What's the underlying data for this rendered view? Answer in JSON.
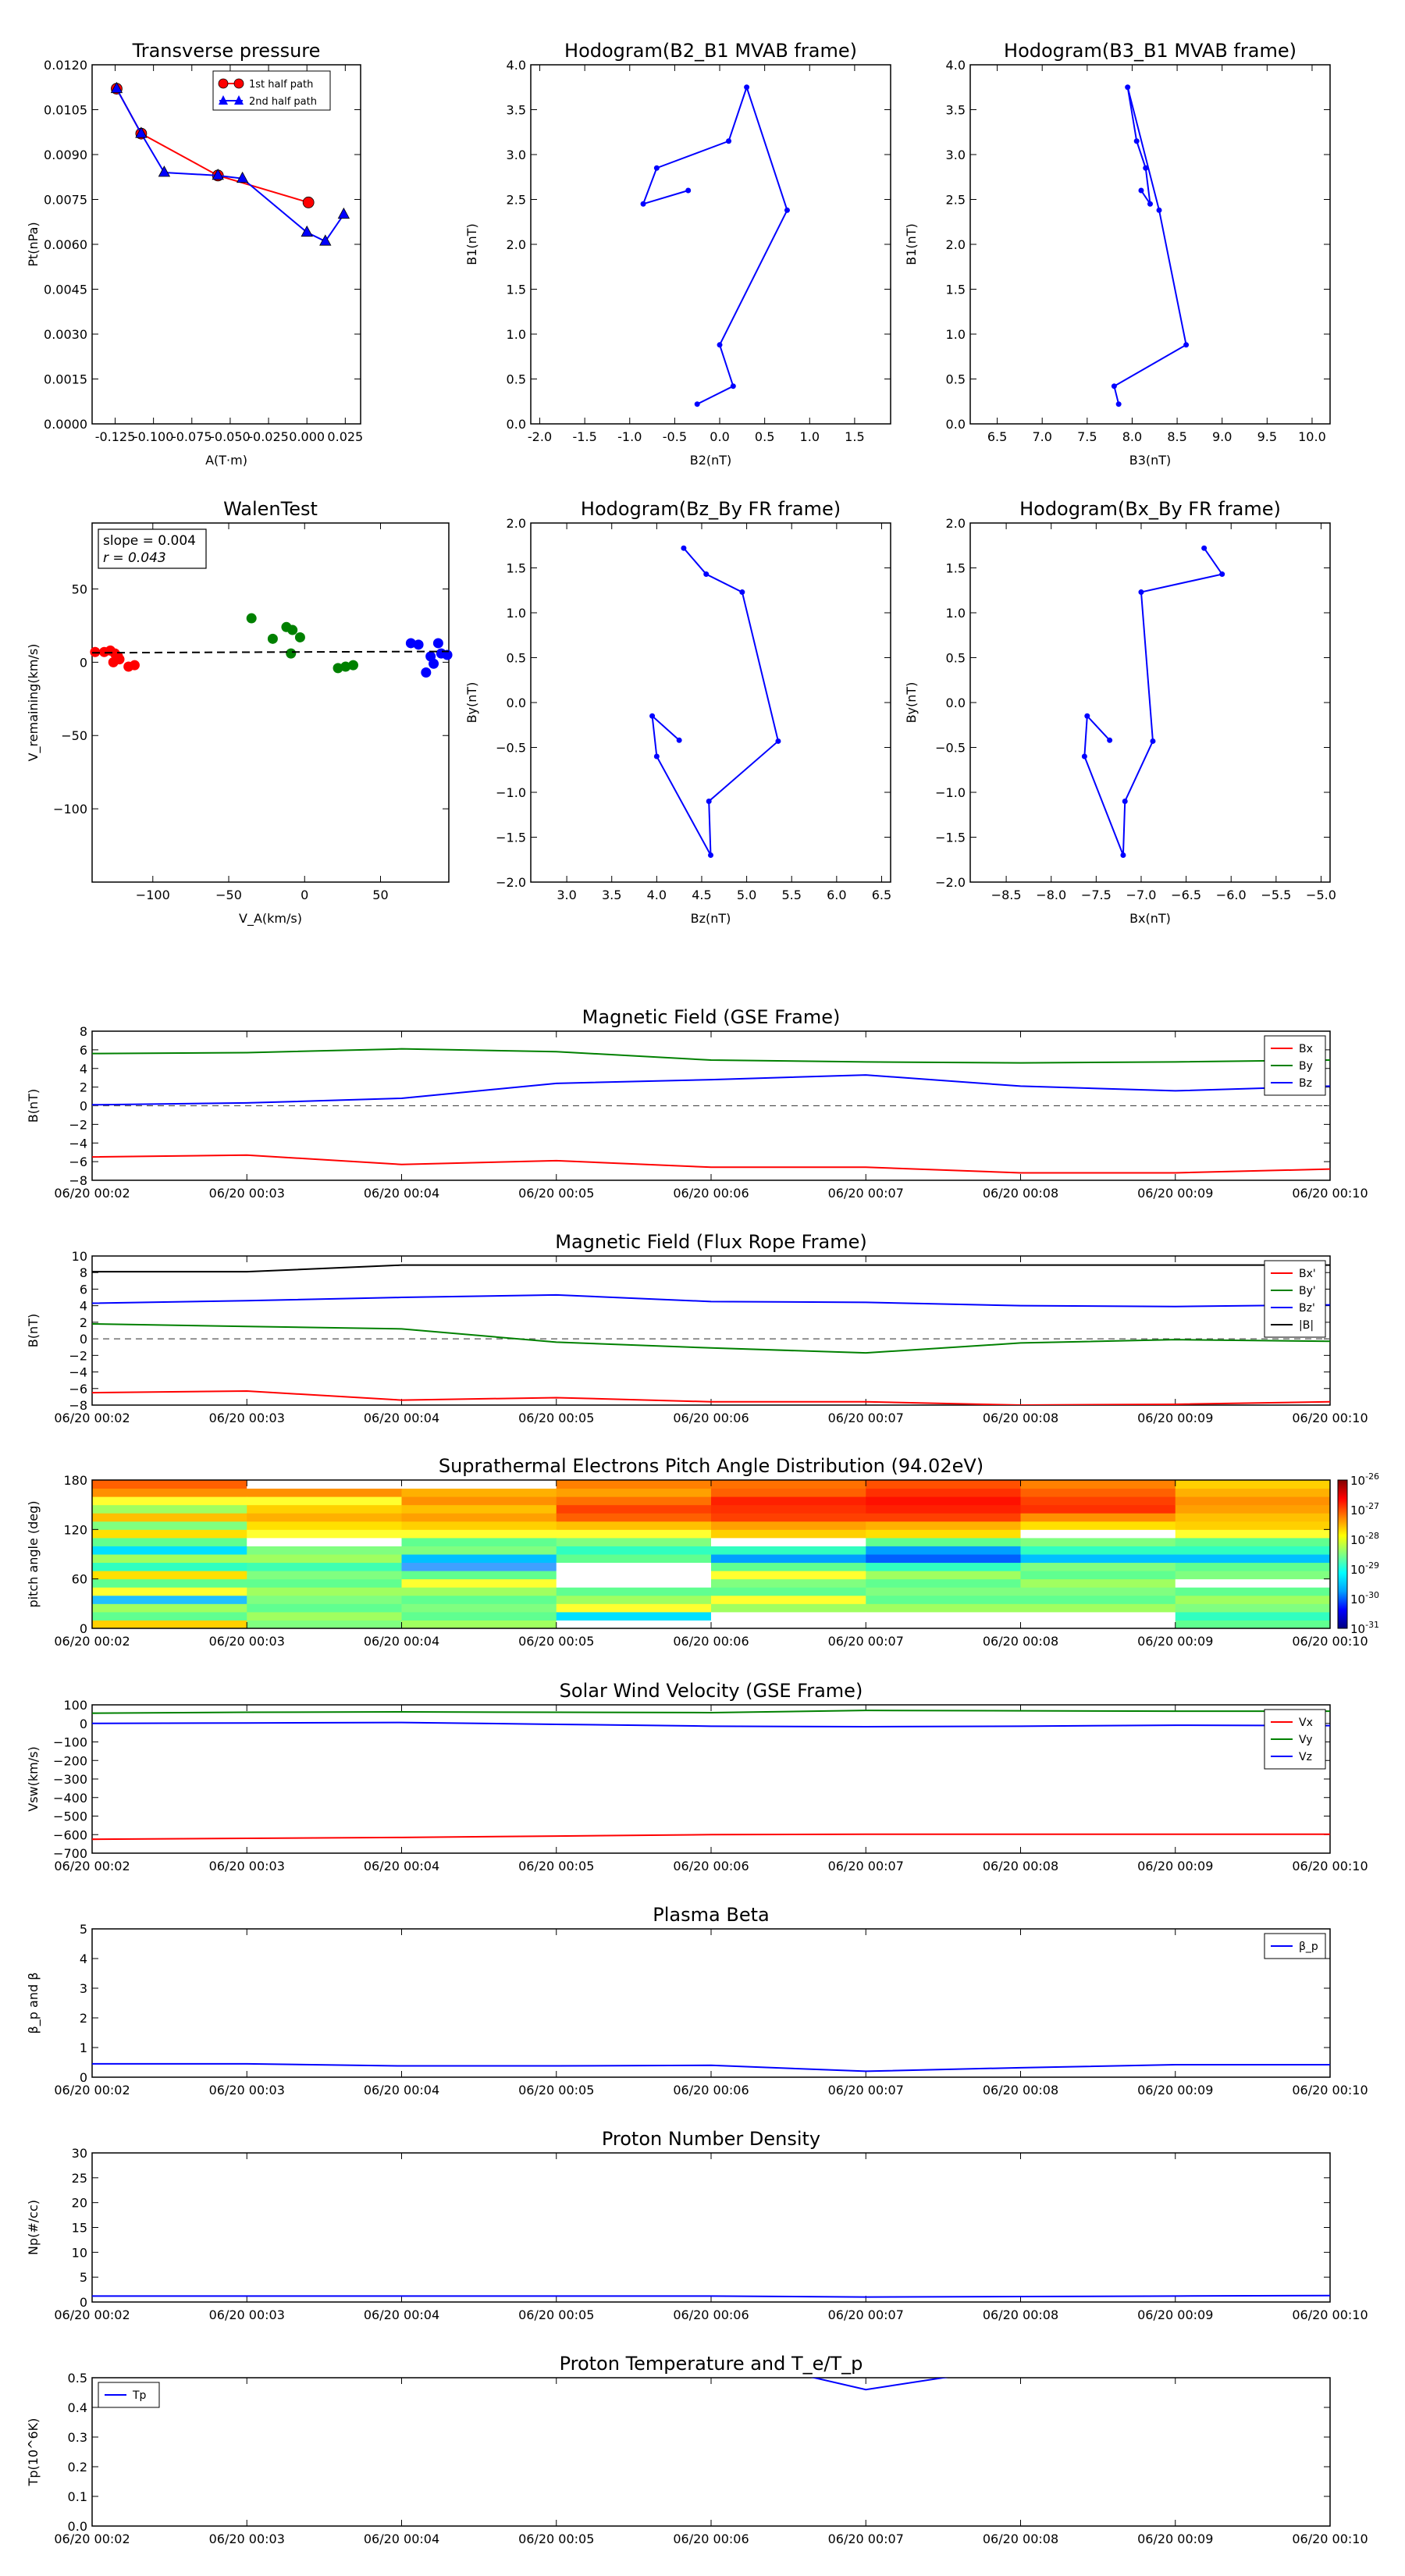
{
  "figure": {
    "type": "multi-panel scientific figure"
  },
  "colors": {
    "red": "#ff0000",
    "green": "#008000",
    "blue": "#0000ff",
    "black": "#000000",
    "grid_dash": "#555555"
  },
  "chart_data": [
    {
      "id": "transverse",
      "type": "line",
      "title": "Transverse pressure",
      "xlabel": "A(T·m)",
      "ylabel": "Pt(nPa)",
      "xlim": [
        -0.14,
        0.035
      ],
      "ylim": [
        0,
        0.012
      ],
      "xticks": [
        "-0.125",
        "-0.100",
        "-0.075",
        "-0.050",
        "-0.025",
        "0.000",
        "0.025"
      ],
      "xtickvals": [
        -0.125,
        -0.1,
        -0.075,
        -0.05,
        -0.025,
        0.0,
        0.025
      ],
      "yticks": [
        "0.0000",
        "0.0015",
        "0.0030",
        "0.0045",
        "0.0060",
        "0.0075",
        "0.0090",
        "0.0105",
        "0.0120"
      ],
      "ytickvals": [
        0,
        0.0015,
        0.003,
        0.0045,
        0.006,
        0.0075,
        0.009,
        0.0105,
        0.012
      ],
      "legend_position": "top-center",
      "series": [
        {
          "name": "1st half path",
          "color": "#ff0000",
          "marker": "circle",
          "x": [
            -0.124,
            -0.108,
            -0.058,
            0.001
          ],
          "y": [
            0.0112,
            0.0097,
            0.0083,
            0.0074
          ]
        },
        {
          "name": "2nd half path",
          "color": "#0000ff",
          "marker": "triangle",
          "x": [
            -0.124,
            -0.108,
            -0.093,
            -0.058,
            -0.042,
            0.0,
            0.012,
            0.024
          ],
          "y": [
            0.0112,
            0.0097,
            0.0084,
            0.0083,
            0.0082,
            0.0064,
            0.0061,
            0.007
          ]
        }
      ]
    },
    {
      "id": "hodo_b2b1",
      "type": "line",
      "title": "Hodogram(B2_B1 MVAB frame)",
      "xlabel": "B2(nT)",
      "ylabel": "B1(nT)",
      "xlim": [
        -2.1,
        1.9
      ],
      "ylim": [
        0,
        4
      ],
      "xticks": [
        "-2.0",
        "-1.5",
        "-1.0",
        "-0.5",
        "0.0",
        "0.5",
        "1.0",
        "1.5"
      ],
      "xtickvals": [
        -2,
        -1.5,
        -1,
        -0.5,
        0,
        0.5,
        1,
        1.5
      ],
      "yticks": [
        "0.0",
        "0.5",
        "1.0",
        "1.5",
        "2.0",
        "2.5",
        "3.0",
        "3.5",
        "4.0"
      ],
      "ytickvals": [
        0,
        0.5,
        1,
        1.5,
        2,
        2.5,
        3,
        3.5,
        4
      ],
      "series": [
        {
          "name": "",
          "color": "#0000ff",
          "marker": "dot",
          "x": [
            -0.35,
            -0.85,
            -0.7,
            0.1,
            0.3,
            0.75,
            0.0,
            0.15,
            -0.25
          ],
          "y": [
            2.6,
            2.45,
            2.85,
            3.15,
            3.75,
            2.38,
            0.88,
            0.42,
            0.22
          ]
        }
      ]
    },
    {
      "id": "hodo_b3b1",
      "type": "line",
      "title": "Hodogram(B3_B1 MVAB frame)",
      "xlabel": "B3(nT)",
      "ylabel": "B1(nT)",
      "xlim": [
        6.2,
        10.2
      ],
      "ylim": [
        0,
        4
      ],
      "xticks": [
        "6.5",
        "7.0",
        "7.5",
        "8.0",
        "8.5",
        "9.0",
        "9.5",
        "10.0"
      ],
      "xtickvals": [
        6.5,
        7,
        7.5,
        8,
        8.5,
        9,
        9.5,
        10
      ],
      "yticks": [
        "0.0",
        "0.5",
        "1.0",
        "1.5",
        "2.0",
        "2.5",
        "3.0",
        "3.5",
        "4.0"
      ],
      "ytickvals": [
        0,
        0.5,
        1,
        1.5,
        2,
        2.5,
        3,
        3.5,
        4
      ],
      "series": [
        {
          "name": "",
          "color": "#0000ff",
          "marker": "dot",
          "x": [
            8.1,
            8.2,
            8.15,
            8.05,
            7.95,
            8.3,
            8.6,
            7.8,
            7.85
          ],
          "y": [
            2.6,
            2.45,
            2.85,
            3.15,
            3.75,
            2.38,
            0.88,
            0.42,
            0.22
          ]
        }
      ]
    },
    {
      "id": "walen",
      "type": "scatter",
      "title": "WalenTest",
      "xlabel": "V_A(km/s)",
      "ylabel": "V_remaining(km/s)",
      "xlim": [
        -140,
        95
      ],
      "ylim": [
        -150,
        95
      ],
      "xticks": [
        "−100",
        "−50",
        "0",
        "50"
      ],
      "xtickvals": [
        -100,
        -50,
        0,
        50
      ],
      "yticks": [
        "−100",
        "−50",
        "0",
        "50"
      ],
      "ytickvals": [
        -100,
        -50,
        0,
        50
      ],
      "annotation": {
        "slope": "slope = 0.004",
        "r": "r = 0.043"
      },
      "fit_line": {
        "slope": 0.004,
        "intercept": 7
      },
      "series": [
        {
          "name": "",
          "color": "#ff0000",
          "x": [
            -138,
            -132,
            -128,
            -125,
            -123,
            -126,
            -122,
            -116,
            -112
          ],
          "y": [
            7,
            7,
            8,
            6,
            4,
            0,
            2,
            -3,
            -2
          ]
        },
        {
          "name": "",
          "color": "#008000",
          "x": [
            -35,
            -21,
            -12,
            -8,
            -3,
            -9,
            22,
            27,
            32
          ],
          "y": [
            30,
            16,
            24,
            22,
            17,
            6,
            -4,
            -3,
            -2
          ]
        },
        {
          "name": "",
          "color": "#0000ff",
          "x": [
            70,
            75,
            80,
            83,
            85,
            88,
            90,
            94
          ],
          "y": [
            13,
            12,
            -7,
            4,
            -1,
            13,
            6,
            5
          ]
        }
      ]
    },
    {
      "id": "hodo_bzby",
      "type": "line",
      "title": "Hodogram(Bz_By FR frame)",
      "xlabel": "Bz(nT)",
      "ylabel": "By(nT)",
      "xlim": [
        2.6,
        6.6
      ],
      "ylim": [
        -2,
        2
      ],
      "xticks": [
        "3.0",
        "3.5",
        "4.0",
        "4.5",
        "5.0",
        "5.5",
        "6.0",
        "6.5"
      ],
      "xtickvals": [
        3,
        3.5,
        4,
        4.5,
        5,
        5.5,
        6,
        6.5
      ],
      "yticks": [
        "−2.0",
        "−1.5",
        "−1.0",
        "−0.5",
        "0.0",
        "0.5",
        "1.0",
        "1.5",
        "2.0"
      ],
      "ytickvals": [
        -2,
        -1.5,
        -1,
        -0.5,
        0,
        0.5,
        1,
        1.5,
        2
      ],
      "series": [
        {
          "name": "",
          "color": "#0000ff",
          "marker": "dot",
          "x": [
            4.25,
            3.95,
            4.0,
            4.6,
            4.58,
            5.35,
            4.95,
            4.55,
            4.3
          ],
          "y": [
            -0.42,
            -0.15,
            -0.6,
            -1.7,
            -1.1,
            -0.43,
            1.23,
            1.43,
            1.72
          ]
        }
      ]
    },
    {
      "id": "hodo_bxby",
      "type": "line",
      "title": "Hodogram(Bx_By FR frame)",
      "xlabel": "Bx(nT)",
      "ylabel": "By(nT)",
      "xlim": [
        -8.9,
        -4.9
      ],
      "ylim": [
        -2,
        2
      ],
      "xticks": [
        "−8.5",
        "−8.0",
        "−7.5",
        "−7.0",
        "−6.5",
        "−6.0",
        "−5.5",
        "−5.0"
      ],
      "xtickvals": [
        -8.5,
        -8,
        -7.5,
        -7,
        -6.5,
        -6,
        -5.5,
        -5
      ],
      "yticks": [
        "−2.0",
        "−1.5",
        "−1.0",
        "−0.5",
        "0.0",
        "0.5",
        "1.0",
        "1.5",
        "2.0"
      ],
      "ytickvals": [
        -2,
        -1.5,
        -1,
        -0.5,
        0,
        0.5,
        1,
        1.5,
        2
      ],
      "series": [
        {
          "name": "",
          "color": "#0000ff",
          "marker": "dot",
          "x": [
            -7.35,
            -7.6,
            -7.63,
            -7.2,
            -7.18,
            -6.87,
            -7.0,
            -6.1,
            -6.3
          ],
          "y": [
            -0.42,
            -0.15,
            -0.6,
            -1.7,
            -1.1,
            -0.43,
            1.23,
            1.43,
            1.72
          ]
        }
      ]
    },
    {
      "id": "mag_gse",
      "type": "line",
      "title": "Magnetic Field (GSE Frame)",
      "ylabel": "B(nT)",
      "ylim": [
        -8,
        8
      ],
      "yticks": [
        "−8",
        "−6",
        "−4",
        "−2",
        "0",
        "2",
        "4",
        "6",
        "8"
      ],
      "ytickvals": [
        -8,
        -6,
        -4,
        -2,
        0,
        2,
        4,
        6,
        8
      ],
      "zero_line": true,
      "legend_position": "top-right",
      "series": [
        {
          "name": "Bx",
          "color": "#ff0000",
          "values": [
            -5.5,
            -5.3,
            -6.3,
            -5.9,
            -6.6,
            -6.6,
            -7.2,
            -7.2,
            -6.8
          ]
        },
        {
          "name": "By",
          "color": "#008000",
          "values": [
            5.6,
            5.7,
            6.1,
            5.8,
            4.9,
            4.7,
            4.6,
            4.7,
            4.9
          ]
        },
        {
          "name": "Bz",
          "color": "#0000ff",
          "values": [
            0.1,
            0.3,
            0.8,
            2.4,
            2.8,
            3.3,
            2.1,
            1.6,
            2.1
          ]
        }
      ]
    },
    {
      "id": "mag_fr",
      "type": "line",
      "title": "Magnetic Field (Flux Rope Frame)",
      "ylabel": "B(nT)",
      "ylim": [
        -8,
        10
      ],
      "yticks": [
        "−8",
        "−6",
        "−4",
        "−2",
        "0",
        "2",
        "4",
        "6",
        "8",
        "10"
      ],
      "ytickvals": [
        -8,
        -6,
        -4,
        -2,
        0,
        2,
        4,
        6,
        8,
        10
      ],
      "zero_line": true,
      "legend_position": "top-right",
      "series": [
        {
          "name": "Bx'",
          "color": "#ff0000",
          "values": [
            -6.5,
            -6.3,
            -7.4,
            -7.1,
            -7.6,
            -7.6,
            -8.0,
            -7.9,
            -7.6
          ]
        },
        {
          "name": "By'",
          "color": "#008000",
          "values": [
            1.8,
            1.5,
            1.2,
            -0.4,
            -1.1,
            -1.7,
            -0.5,
            -0.1,
            -0.3
          ]
        },
        {
          "name": "Bz'",
          "color": "#0000ff",
          "values": [
            4.3,
            4.6,
            5.0,
            5.3,
            4.5,
            4.4,
            4.0,
            3.9,
            4.1
          ]
        },
        {
          "name": "|B|",
          "color": "#000000",
          "values": [
            8.1,
            8.1,
            8.9,
            8.9,
            8.9,
            8.9,
            8.9,
            8.9,
            8.9
          ]
        }
      ]
    },
    {
      "id": "pad",
      "type": "heatmap",
      "title": "Suprathermal Electrons Pitch Angle Distribution (94.02eV)",
      "ylabel": "pitch angle (deg)",
      "ylim": [
        0,
        180
      ],
      "yticks": [
        "0",
        "60",
        "120",
        "180"
      ],
      "ytickvals": [
        0,
        60,
        120,
        180
      ],
      "colorbar_ticks": [
        "-26",
        "-27",
        "-28",
        "-29",
        "-30",
        "-31"
      ],
      "colorbar_base": "10",
      "columns": [
        [
          "#ffd000",
          "#60ff90",
          "#a0ff60",
          "#20c0ff",
          "#ffff30",
          "#60ff90",
          "#ffe000",
          "#30ffc0",
          "#a0ff60",
          "#00e0ff",
          "#60ff90",
          "#ffe000",
          "#80ff80",
          "#ffc000",
          "#a0ff60",
          "#ffff30",
          "#ff9000",
          "#ff6000"
        ],
        [
          "#80ff80",
          "#a0ff60",
          "#60ff90",
          "#80ff80",
          "#a0ff60",
          "#60ff90",
          "#80ff80",
          "#40ffb0",
          "#a0ff60",
          "#80ff80",
          "#ffffff",
          "#ffff30",
          "#ffe000",
          "#ffb000",
          "#ffd000",
          "#ffff30",
          "#ff9000",
          "#ffffff"
        ],
        [
          "#a0ff60",
          "#60ff90",
          "#80ff80",
          "#60ff90",
          "#a0ff60",
          "#ffff30",
          "#60ff90",
          "#40a0ff",
          "#00c0ff",
          "#80ff80",
          "#60ff90",
          "#ffff30",
          "#ffd000",
          "#ffa000",
          "#ffc000",
          "#ff9000",
          "#ffb000",
          "#ffffff"
        ],
        [
          "#ffffff",
          "#00e0ff",
          "#ffff30",
          "#a0ff60",
          "#60ff90",
          "#ffffff",
          "#ffffff",
          "#ffffff",
          "#60ff90",
          "#30ffc0",
          "#80ff80",
          "#ffff30",
          "#ffc000",
          "#ff6000",
          "#ff4000",
          "#ff7000",
          "#ffa000",
          "#ff8000"
        ],
        [
          "#ffffff",
          "#ffffff",
          "#a0ff60",
          "#ffff30",
          "#60ff90",
          "#80ff80",
          "#ffff30",
          "#60ff90",
          "#00a0ff",
          "#30ffc0",
          "#ffffff",
          "#ffd000",
          "#ffa000",
          "#ff4000",
          "#ff3000",
          "#ff2000",
          "#ff6000",
          "#ff7000"
        ],
        [
          "#ffffff",
          "#ffffff",
          "#a0ff60",
          "#60ff90",
          "#80ff80",
          "#60ff90",
          "#a0ff60",
          "#30ffc0",
          "#0060ff",
          "#00a0ff",
          "#60ff90",
          "#ffe000",
          "#ffb000",
          "#ff4000",
          "#ff2000",
          "#ff1000",
          "#ff3000",
          "#ff5000"
        ],
        [
          "#ffffff",
          "#ffffff",
          "#a0ff60",
          "#60ff90",
          "#80ff80",
          "#a0ff60",
          "#60ff90",
          "#80ff80",
          "#00c0ff",
          "#30ffc0",
          "#80ff80",
          "#ffffff",
          "#ffe000",
          "#ff9000",
          "#ff3000",
          "#ff4000",
          "#ff6000",
          "#ff8000"
        ],
        [
          "#60ff90",
          "#30ffc0",
          "#80ff80",
          "#a0ff60",
          "#60ff90",
          "#ffffff",
          "#80ff80",
          "#60ff90",
          "#00c0ff",
          "#30ffc0",
          "#60ff90",
          "#ffff30",
          "#ffd000",
          "#ffc000",
          "#ffa000",
          "#ff9000",
          "#ffb000",
          "#ffd000"
        ]
      ]
    },
    {
      "id": "vsw",
      "type": "line",
      "title": "Solar Wind Velocity (GSE Frame)",
      "ylabel": "Vsw(km/s)",
      "ylim": [
        -700,
        100
      ],
      "yticks": [
        "−700",
        "−600",
        "−500",
        "−400",
        "−300",
        "−200",
        "−100",
        "0",
        "100"
      ],
      "ytickvals": [
        -700,
        -600,
        -500,
        -400,
        -300,
        -200,
        -100,
        0,
        100
      ],
      "legend_position": "top-right",
      "series": [
        {
          "name": "Vx",
          "color": "#ff0000",
          "values": [
            -625,
            -620,
            -615,
            -608,
            -600,
            -598,
            -598,
            -598,
            -598
          ]
        },
        {
          "name": "Vy",
          "color": "#008000",
          "values": [
            55,
            60,
            62,
            60,
            58,
            70,
            68,
            66,
            66
          ]
        },
        {
          "name": "Vz",
          "color": "#0000ff",
          "values": [
            0,
            2,
            5,
            -5,
            -15,
            -18,
            -15,
            -10,
            -12
          ]
        }
      ]
    },
    {
      "id": "beta",
      "type": "line",
      "title": "Plasma Beta",
      "ylabel": "β_p and β",
      "ylim": [
        0,
        5
      ],
      "yticks": [
        "0",
        "1",
        "2",
        "3",
        "4",
        "5"
      ],
      "ytickvals": [
        0,
        1,
        2,
        3,
        4,
        5
      ],
      "legend_position": "top-right",
      "series": [
        {
          "name": "β_p",
          "color": "#0000ff",
          "values": [
            0.45,
            0.45,
            0.38,
            0.38,
            0.4,
            0.2,
            0.32,
            0.42,
            0.42
          ]
        }
      ]
    },
    {
      "id": "np",
      "type": "line",
      "title": "Proton Number Density",
      "ylabel": "Np(#/cc)",
      "ylim": [
        0,
        30
      ],
      "yticks": [
        "0",
        "5",
        "10",
        "15",
        "20",
        "25",
        "30"
      ],
      "ytickvals": [
        0,
        5,
        10,
        15,
        20,
        25,
        30
      ],
      "series": [
        {
          "name": "",
          "color": "#0000ff",
          "values": [
            1.2,
            1.2,
            1.2,
            1.2,
            1.2,
            1.0,
            1.1,
            1.2,
            1.3
          ]
        }
      ]
    },
    {
      "id": "tp",
      "type": "line",
      "title": "Proton Temperature and T_e/T_p",
      "ylabel": "Tp(10^6K)",
      "ylim": [
        0,
        0.5
      ],
      "yticks": [
        "0.0",
        "0.1",
        "0.2",
        "0.3",
        "0.4",
        "0.5"
      ],
      "ytickvals": [
        0,
        0.1,
        0.2,
        0.3,
        0.4,
        0.5
      ],
      "legend_position": "top-left",
      "series": [
        {
          "name": "Tp",
          "color": "#0000ff",
          "x": [
            4.5,
            5.0,
            5.75
          ],
          "y": [
            0.52,
            0.46,
            0.52
          ]
        }
      ]
    }
  ],
  "time_axis": {
    "labels": [
      "06/20 00:02",
      "06/20 00:03",
      "06/20 00:04",
      "06/20 00:05",
      "06/20 00:06",
      "06/20 00:07",
      "06/20 00:08",
      "06/20 00:09",
      "06/20 00:10"
    ]
  }
}
